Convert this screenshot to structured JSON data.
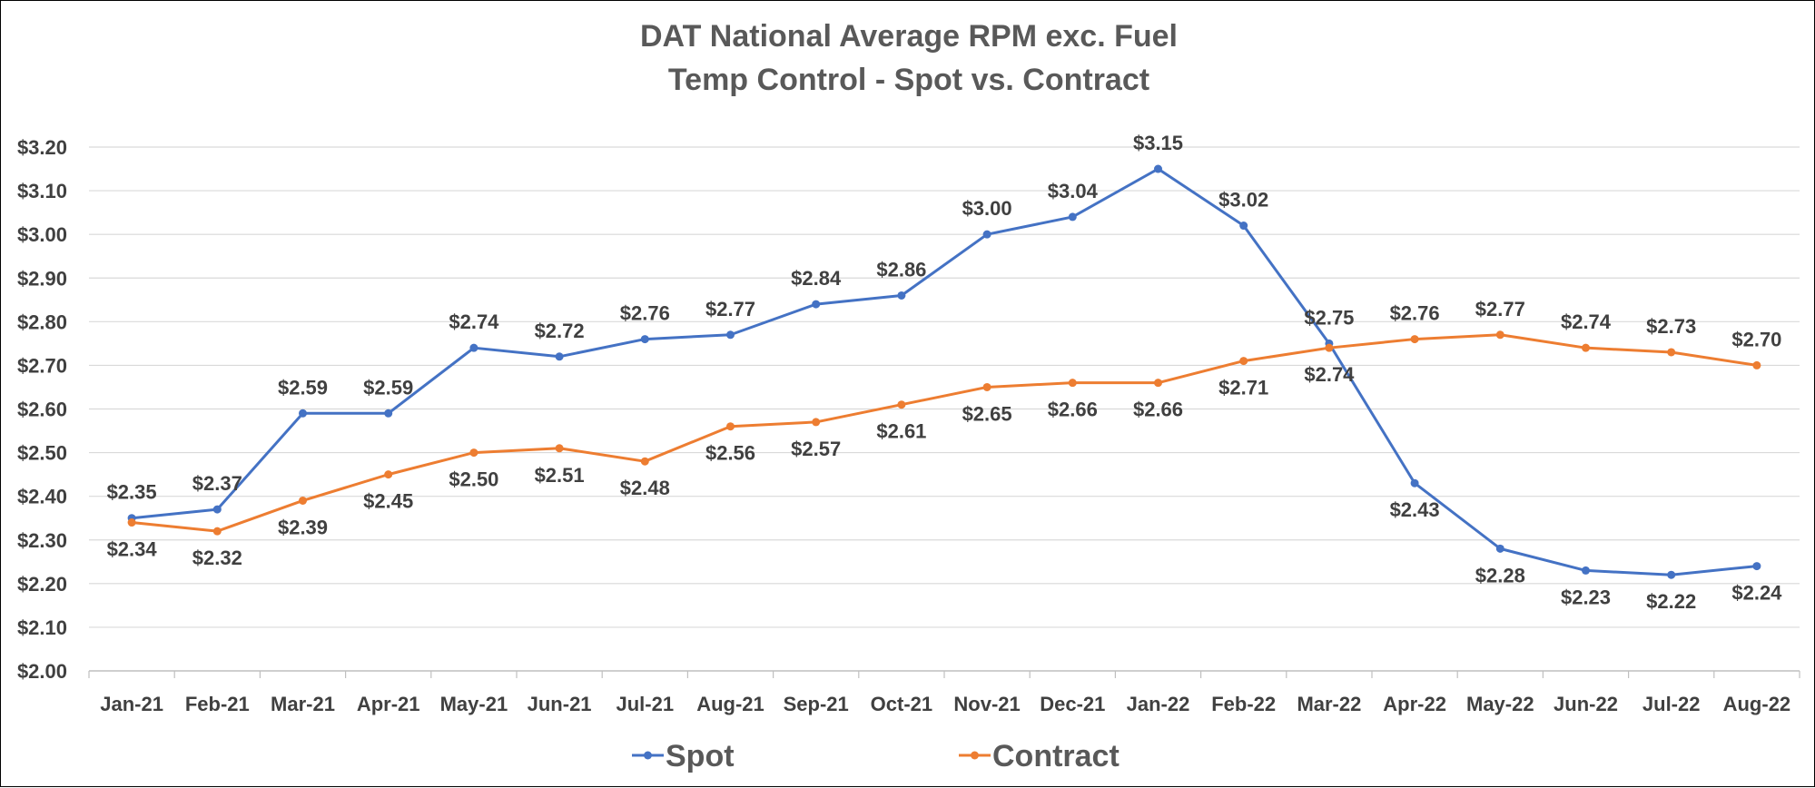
{
  "chart_data": {
    "type": "line",
    "title": "DAT National Average RPM exc. Fuel",
    "subtitle": "Temp Control - Spot vs. Contract",
    "categories": [
      "Jan-21",
      "Feb-21",
      "Mar-21",
      "Apr-21",
      "May-21",
      "Jun-21",
      "Jul-21",
      "Aug-21",
      "Sep-21",
      "Oct-21",
      "Nov-21",
      "Dec-21",
      "Jan-22",
      "Feb-22",
      "Mar-22",
      "Apr-22",
      "May-22",
      "Jun-22",
      "Jul-22",
      "Aug-22"
    ],
    "ylim": [
      2.0,
      3.2
    ],
    "yticks": [
      "$2.00",
      "$2.10",
      "$2.20",
      "$2.30",
      "$2.40",
      "$2.50",
      "$2.60",
      "$2.70",
      "$2.80",
      "$2.90",
      "$3.00",
      "$3.10",
      "$3.20"
    ],
    "grid": true,
    "legend": "bottom",
    "series": [
      {
        "name": "Spot",
        "color": "#4472C4",
        "values": [
          2.35,
          2.37,
          2.59,
          2.59,
          2.74,
          2.72,
          2.76,
          2.77,
          2.84,
          2.86,
          3.0,
          3.04,
          3.15,
          3.02,
          2.75,
          2.43,
          2.28,
          2.23,
          2.22,
          2.24
        ],
        "labels": [
          "$2.35",
          "$2.37",
          "$2.59",
          "$2.59",
          "$2.74",
          "$2.72",
          "$2.76",
          "$2.77",
          "$2.84",
          "$2.86",
          "$3.00",
          "$3.04",
          "$3.15",
          "$3.02",
          "$2.75",
          "$2.43",
          "$2.28",
          "$2.23",
          "$2.22",
          "$2.24"
        ]
      },
      {
        "name": "Contract",
        "color": "#ED7D31",
        "values": [
          2.34,
          2.32,
          2.39,
          2.45,
          2.5,
          2.51,
          2.48,
          2.56,
          2.57,
          2.61,
          2.65,
          2.66,
          2.66,
          2.71,
          2.74,
          2.76,
          2.77,
          2.74,
          2.73,
          2.7
        ],
        "labels": [
          "$2.34",
          "$2.32",
          "$2.39",
          "$2.45",
          "$2.50",
          "$2.51",
          "$2.48",
          "$2.56",
          "$2.57",
          "$2.61",
          "$2.65",
          "$2.66",
          "$2.66",
          "$2.71",
          "$2.74",
          "$2.76",
          "$2.77",
          "$2.74",
          "$2.73",
          "$2.70"
        ]
      }
    ]
  }
}
